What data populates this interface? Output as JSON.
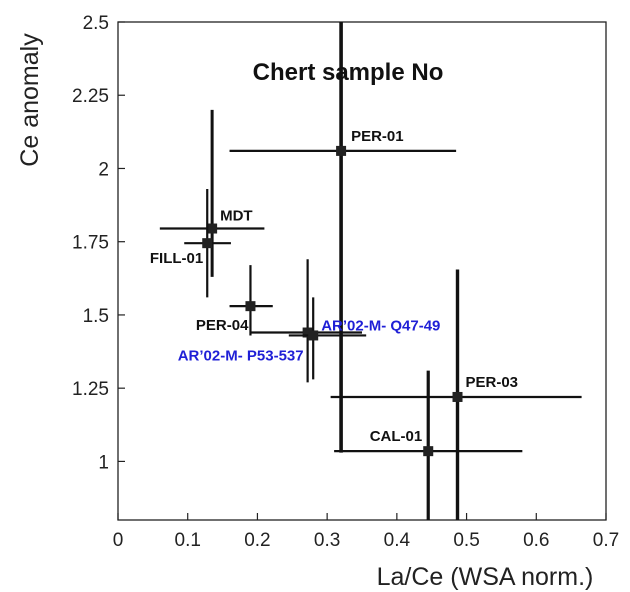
{
  "chart_data": {
    "type": "scatter",
    "title": "Chert sample No",
    "xlabel": "La/Ce (WSA norm.)",
    "ylabel": "Ce anomaly",
    "xlim": [
      0,
      0.7
    ],
    "ylim": [
      0.8,
      2.5
    ],
    "x_ticks": [
      "0",
      "0.1",
      "0.2",
      "0.3",
      "0.4",
      "0.5",
      "0.6",
      "0.7"
    ],
    "y_ticks": [
      "1",
      "1.25",
      "1.5",
      "1.75",
      "2",
      "2.25",
      "2.5"
    ],
    "points": [
      {
        "label": "PER-01",
        "x": 0.32,
        "y": 2.06,
        "xerr": [
          0.16,
          0.485
        ],
        "yerr": [
          1.03,
          2.5
        ],
        "label_color": "#111111"
      },
      {
        "label": "MDT",
        "x": 0.135,
        "y": 1.795,
        "xerr": [
          0.06,
          0.21
        ],
        "yerr": [
          1.63,
          2.2
        ],
        "label_color": "#111111"
      },
      {
        "label": "FILL-01",
        "x": 0.128,
        "y": 1.745,
        "xerr": [
          0.095,
          0.162
        ],
        "yerr": [
          1.56,
          1.93
        ],
        "label_color": "#111111"
      },
      {
        "label": "PER-04",
        "x": 0.19,
        "y": 1.53,
        "xerr": [
          0.16,
          0.222
        ],
        "yerr": [
          1.43,
          1.67
        ],
        "label_color": "#111111"
      },
      {
        "label": "AR’02-M- P53-537",
        "x": 0.272,
        "y": 1.44,
        "xerr": [
          0.19,
          0.35
        ],
        "yerr": [
          1.27,
          1.69
        ],
        "label_color": "#1f1fd6"
      },
      {
        "label": "AR’02-M- Q47-49",
        "x": 0.28,
        "y": 1.43,
        "xerr": [
          0.245,
          0.356
        ],
        "yerr": [
          1.28,
          1.56
        ],
        "label_color": "#1f1fd6"
      },
      {
        "label": "PER-03",
        "x": 0.487,
        "y": 1.22,
        "xerr": [
          0.305,
          0.665
        ],
        "yerr": [
          0.8,
          1.655
        ],
        "label_color": "#111111"
      },
      {
        "label": "CAL-01",
        "x": 0.445,
        "y": 1.035,
        "xerr": [
          0.31,
          0.58
        ],
        "yerr": [
          0.8,
          1.31
        ],
        "label_color": "#111111"
      }
    ],
    "grid": false,
    "colors": {
      "marker": "#222222",
      "error_bars": "#111111",
      "highlight_labels": "#1f1fd6"
    }
  }
}
